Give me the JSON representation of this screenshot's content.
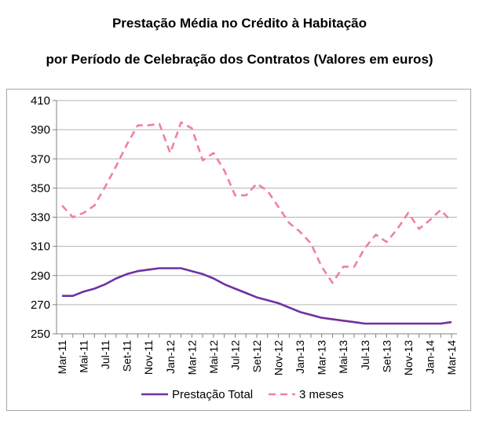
{
  "titles": {
    "line1": "Prestação Média no Crédito à Habitação",
    "line2": "por Período de Celebração dos Contratos (Valores em euros)"
  },
  "chart_data": {
    "type": "line",
    "title": "Prestação Média no Crédito à Habitação por Período de Celebração dos Contratos (Valores em euros)",
    "xlabel": "",
    "ylabel": "",
    "ylim": [
      250,
      410
    ],
    "yticks": [
      250,
      270,
      290,
      310,
      330,
      350,
      370,
      390,
      410
    ],
    "grid": "horizontal",
    "legend": "bottom",
    "x": [
      "Mar-11",
      "Abr-11",
      "Mai-11",
      "Jun-11",
      "Jul-11",
      "Ago-11",
      "Set-11",
      "Out-11",
      "Nov-11",
      "Dez-11",
      "Jan-12",
      "Fev-12",
      "Mar-12",
      "Abr-12",
      "Mai-12",
      "Jun-12",
      "Jul-12",
      "Ago-12",
      "Set-12",
      "Out-12",
      "Nov-12",
      "Dez-12",
      "Jan-13",
      "Fev-13",
      "Mar-13",
      "Abr-13",
      "Mai-13",
      "Jun-13",
      "Jul-13",
      "Ago-13",
      "Set-13",
      "Out-13",
      "Nov-13",
      "Dez-13",
      "Jan-14",
      "Fev-14",
      "Mar-14"
    ],
    "xtick_labels": [
      "Mar-11",
      "Mai-11",
      "Jul-11",
      "Set-11",
      "Nov-11",
      "Jan-12",
      "Mar-12",
      "Mai-12",
      "Jul-12",
      "Set-12",
      "Nov-12",
      "Jan-13",
      "Mar-13",
      "Mai-13",
      "Jul-13",
      "Set-13",
      "Nov-13",
      "Jan-14",
      "Mar-14"
    ],
    "series": [
      {
        "name": "Prestação Total",
        "color": "#7030a0",
        "style": "solid",
        "values": [
          276,
          276,
          279,
          281,
          284,
          288,
          291,
          293,
          294,
          295,
          295,
          295,
          293,
          291,
          288,
          284,
          281,
          278,
          275,
          273,
          271,
          268,
          265,
          263,
          261,
          260,
          259,
          258,
          257,
          257,
          257,
          257,
          257,
          257,
          257,
          257,
          258
        ]
      },
      {
        "name": "3 meses",
        "color": "#f0829a",
        "style": "dashed",
        "values": [
          338,
          330,
          333,
          338,
          351,
          365,
          380,
          393,
          393,
          394,
          374,
          395,
          391,
          369,
          374,
          362,
          345,
          345,
          353,
          348,
          337,
          326,
          320,
          312,
          296,
          285,
          296,
          296,
          309,
          318,
          313,
          322,
          333,
          322,
          328,
          335,
          327
        ]
      }
    ]
  }
}
